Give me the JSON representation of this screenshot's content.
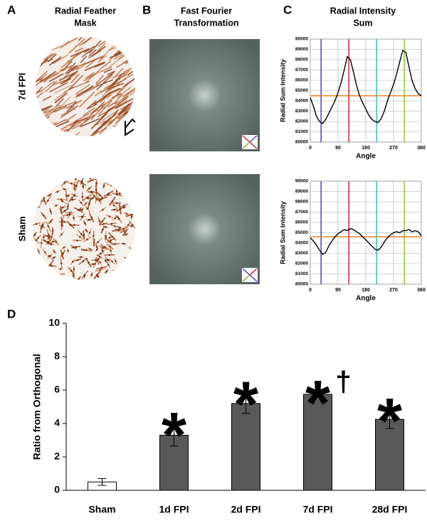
{
  "figure": {
    "panels": [
      {
        "label": "A",
        "title": [
          "Radial Feather",
          "Mask"
        ]
      },
      {
        "label": "B",
        "title": [
          "Fast Fourier",
          "Transformation"
        ]
      },
      {
        "label": "C",
        "title": [
          "Radial Intensity",
          "Sum"
        ]
      },
      {
        "label": "D"
      }
    ],
    "rows": [
      "7d FPI",
      "Sham"
    ]
  },
  "chart_data": [
    {
      "type": "line",
      "ylabel": "Radial Sum Intensity",
      "xlabel": "Angle",
      "x": [
        0,
        10,
        20,
        30,
        40,
        50,
        60,
        70,
        80,
        90,
        100,
        110,
        120,
        130,
        140,
        150,
        160,
        170,
        180,
        190,
        200,
        210,
        220,
        230,
        240,
        250,
        260,
        270,
        280,
        290,
        300,
        310,
        320,
        330,
        340,
        350,
        360
      ],
      "values": [
        84300,
        83500,
        82500,
        82000,
        81800,
        82200,
        82800,
        83400,
        84000,
        84800,
        85800,
        87000,
        88300,
        88000,
        86800,
        85500,
        84500,
        83800,
        83200,
        82600,
        82200,
        82000,
        81900,
        82300,
        83000,
        84000,
        84800,
        85600,
        86600,
        87800,
        88900,
        88700,
        87300,
        86000,
        85200,
        84700,
        84500
      ],
      "color": "#000000",
      "xlim": [
        0,
        360
      ],
      "xticks": [
        0,
        90,
        180,
        270,
        360
      ],
      "ylim": [
        80000,
        90000
      ],
      "yticks": [
        80000,
        81000,
        82000,
        83000,
        84000,
        85000,
        86000,
        87000,
        88000,
        89000,
        90000
      ],
      "grid": true,
      "vlines": {
        "values": [
          35,
          125,
          215,
          305
        ],
        "colors": [
          "#4a3fc4",
          "#c8243c",
          "#3cb8c8",
          "#8cc83c"
        ]
      },
      "hline": {
        "value": 84500,
        "color": "#e8821e"
      }
    },
    {
      "type": "line",
      "ylabel": "Radial Sum Intensity",
      "xlabel": "Angle",
      "x": [
        0,
        10,
        20,
        30,
        40,
        50,
        60,
        70,
        80,
        90,
        100,
        110,
        120,
        130,
        140,
        150,
        160,
        170,
        180,
        190,
        200,
        210,
        220,
        230,
        240,
        250,
        260,
        270,
        280,
        290,
        300,
        310,
        320,
        330,
        340,
        350,
        360
      ],
      "values": [
        84500,
        84200,
        83800,
        83300,
        82900,
        83100,
        83700,
        84200,
        84600,
        84900,
        85100,
        85300,
        85200,
        85400,
        85300,
        85100,
        84900,
        84600,
        84300,
        84000,
        83700,
        83400,
        83300,
        83600,
        84100,
        84500,
        84800,
        85000,
        85100,
        85000,
        85200,
        85200,
        85300,
        85100,
        85200,
        85100,
        84700
      ],
      "color": "#000000",
      "xlim": [
        0,
        360
      ],
      "xticks": [
        0,
        90,
        180,
        270,
        360
      ],
      "ylim": [
        80000,
        90000
      ],
      "yticks": [
        80000,
        81000,
        82000,
        83000,
        84000,
        85000,
        86000,
        87000,
        88000,
        89000,
        90000
      ],
      "grid": true,
      "vlines": {
        "values": [
          35,
          125,
          215,
          305
        ],
        "colors": [
          "#4a3fc4",
          "#c8243c",
          "#3cb8c8",
          "#8cc83c"
        ]
      },
      "hline": {
        "value": 84600,
        "color": "#e8821e"
      }
    },
    {
      "type": "bar",
      "ylabel": "Ratio from Orthogonal",
      "categories": [
        "Sham",
        "1d FPI",
        "2d FPI",
        "7d FPI",
        "28d FPI"
      ],
      "values": [
        0.5,
        3.3,
        5.2,
        5.75,
        4.25
      ],
      "errors": [
        0.2,
        0.65,
        0.6,
        0.12,
        0.55
      ],
      "colors": [
        "#ffffff",
        "#595959",
        "#595959",
        "#595959",
        "#595959"
      ],
      "ylim": [
        0,
        10
      ],
      "yticks": [
        0,
        2,
        4,
        6,
        8,
        10
      ],
      "annotations": [
        {
          "text": "*",
          "x": "1d FPI"
        },
        {
          "text": "*",
          "x": "2d FPI"
        },
        {
          "text": "*",
          "x": "7d FPI"
        },
        {
          "text": "†",
          "x": "7d FPI"
        },
        {
          "text": "*",
          "x": "28d FPI"
        }
      ]
    }
  ]
}
